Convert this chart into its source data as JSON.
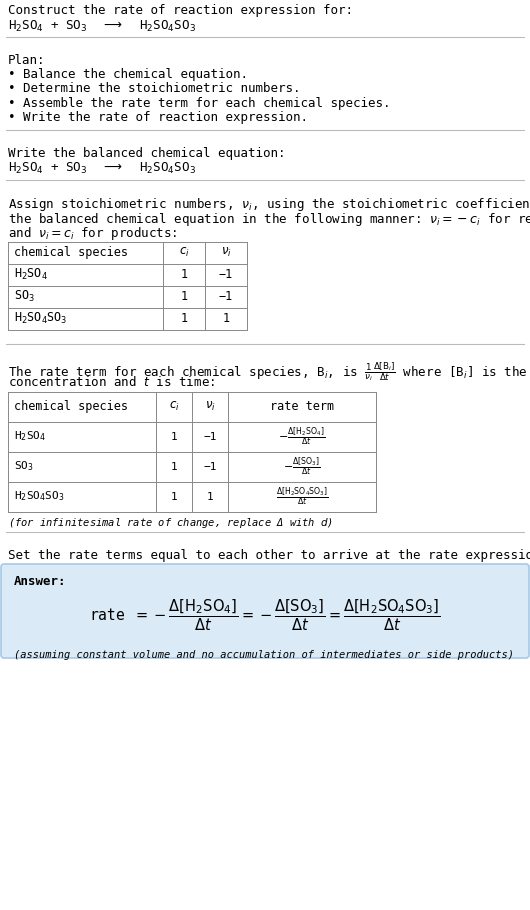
{
  "bg_color": "#ffffff",
  "text_color": "#000000",
  "title_line1": "Construct the rate of reaction expression for:",
  "plan_header": "Plan:",
  "plan_items": [
    "• Balance the chemical equation.",
    "• Determine the stoichiometric numbers.",
    "• Assemble the rate term for each chemical species.",
    "• Write the rate of reaction expression."
  ],
  "balanced_header": "Write the balanced chemical equation:",
  "stoich_intro1": "Assign stoichiometric numbers, $\\nu_i$, using the stoichiometric coefficients, $c_i$, from",
  "stoich_intro2": "the balanced chemical equation in the following manner: $\\nu_i = -c_i$ for reactants",
  "stoich_intro3": "and $\\nu_i = c_i$ for products:",
  "table1_headers": [
    "chemical species",
    "$c_i$",
    "$\\nu_i$"
  ],
  "table1_rows": [
    [
      "H$_2$SO$_4$",
      "1",
      "−1"
    ],
    [
      "SO$_3$",
      "1",
      "−1"
    ],
    [
      "H$_2$SO$_4$SO$_3$",
      "1",
      "1"
    ]
  ],
  "rate_intro1": "The rate term for each chemical species, B$_i$, is $\\frac{1}{\\nu_i}\\frac{\\Delta[\\mathrm{B}_i]}{\\Delta t}$ where [B$_i$] is the amount",
  "rate_intro2": "concentration and $t$ is time:",
  "table2_headers": [
    "chemical species",
    "$c_i$",
    "$\\nu_i$",
    "rate term"
  ],
  "table2_rows": [
    [
      "H$_2$SO$_4$",
      "1",
      "−1",
      "$-\\frac{\\Delta[\\mathrm{H_2SO_4}]}{\\Delta t}$"
    ],
    [
      "SO$_3$",
      "1",
      "−1",
      "$-\\frac{\\Delta[\\mathrm{SO_3}]}{\\Delta t}$"
    ],
    [
      "H$_2$SO$_4$SO$_3$",
      "1",
      "1",
      "$\\frac{\\Delta[\\mathrm{H_2SO_4SO_3}]}{\\Delta t}$"
    ]
  ],
  "infinitesimal_note": "(for infinitesimal rate of change, replace Δ with $d$)",
  "set_equal_text": "Set the rate terms equal to each other to arrive at the rate expression:",
  "answer_box_color": "#daeaf6",
  "answer_label": "Answer:",
  "answer_eq": "rate $= -\\dfrac{\\Delta[\\mathrm{H_2SO_4}]}{\\Delta t} = -\\dfrac{\\Delta[\\mathrm{SO_3}]}{\\Delta t} = \\dfrac{\\Delta[\\mathrm{H_2SO_4SO_3}]}{\\Delta t}$",
  "answer_note": "(assuming constant volume and no accumulation of intermediates or side products)"
}
